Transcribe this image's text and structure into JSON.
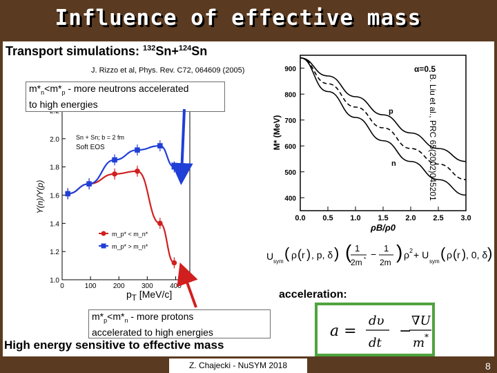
{
  "title": "Influence of effective mass",
  "subtitle": {
    "prefix": "Transport simulations: ",
    "m1": "132",
    "e1": "Sn+",
    "m2": "124",
    "e2": "Sn"
  },
  "reference": "J. Rizzo et al, Phys. Rev. C72, 064609 (2005)",
  "box_top": {
    "l1a": "m*",
    "l1b": "n",
    "l1c": "<m*",
    "l1d": "p",
    "l1e": " - more neutrons accelerated",
    "l2": "to high energies"
  },
  "box_bottom": {
    "l1a": "m*",
    "l1b": "p",
    "l1c": "<m*",
    "l1d": "n",
    "l1e": " - more protons",
    "l2": "accelerated to high energies"
  },
  "side_reference": "B. Liu et al., PRC 65(2002)045201",
  "pt_label": "p",
  "pt_sub": "T",
  "pt_unit": " [MeV/c]",
  "acceleration_label": "acceleration:",
  "high_energy_note": "High energy sensitive to  effective mass",
  "footer": "Z. Chajecki - NuSYM 2018",
  "page_number": "8",
  "colors": {
    "red": "#d11f1f",
    "blue": "#1f3fd6",
    "green": "#4fa33f",
    "frame": "#5a3a20"
  },
  "chart_data": [
    {
      "type": "scatter",
      "inset_text": "Soft EOS",
      "inset_system": "Sn + Sn; b = 2 fm",
      "ylabel": "Y(n)/Y(p)",
      "xticks": [
        "0",
        "100",
        "200",
        "300",
        "400"
      ],
      "yticks": [
        "1.0",
        "1.2",
        "1.4",
        "1.6",
        "1.8",
        "2.0",
        "2.2"
      ],
      "ylim": [
        1.0,
        2.2
      ],
      "xlim": [
        0,
        450
      ],
      "series": [
        {
          "name": "m_p* < m_n*",
          "color": "#d11f1f",
          "x": [
            20,
            95,
            185,
            265,
            345,
            395
          ],
          "y": [
            1.61,
            1.68,
            1.75,
            1.77,
            1.4,
            1.12
          ]
        },
        {
          "name": "m_p* > m_n*",
          "color": "#1f3fd6",
          "x": [
            20,
            95,
            185,
            265,
            345,
            395
          ],
          "y": [
            1.61,
            1.68,
            1.85,
            1.92,
            1.95,
            1.8
          ]
        }
      ]
    },
    {
      "type": "line",
      "xlabel": "ρB/ρ0",
      "ylabel": "M* (MeV)",
      "annotation": "α=0.5",
      "xticks": [
        "0.0",
        "0.5",
        "1.0",
        "1.5",
        "2.0",
        "2.5",
        "3.0"
      ],
      "yticks": [
        "400",
        "500",
        "600",
        "700",
        "800",
        "900"
      ],
      "xlim": [
        0,
        3.0
      ],
      "ylim": [
        350,
        950
      ],
      "series": [
        {
          "name": "p",
          "x": [
            0,
            0.5,
            1.0,
            1.5,
            2.0,
            2.5,
            3.0
          ],
          "y": [
            940,
            870,
            790,
            720,
            650,
            590,
            540
          ]
        },
        {
          "name": "",
          "x": [
            0,
            0.5,
            1.0,
            1.5,
            2.0,
            2.5,
            3.0
          ],
          "y": [
            940,
            840,
            750,
            670,
            590,
            530,
            470
          ]
        },
        {
          "name": "n",
          "x": [
            0,
            0.5,
            1.0,
            1.5,
            2.0,
            2.5,
            3.0
          ],
          "y": [
            940,
            810,
            710,
            620,
            540,
            470,
            410
          ]
        }
      ]
    }
  ],
  "formula": {
    "dv": "dυ",
    "dt": "dt",
    "gradU": "∇U",
    "m": "m",
    "star": "*",
    "a": "a ="
  }
}
